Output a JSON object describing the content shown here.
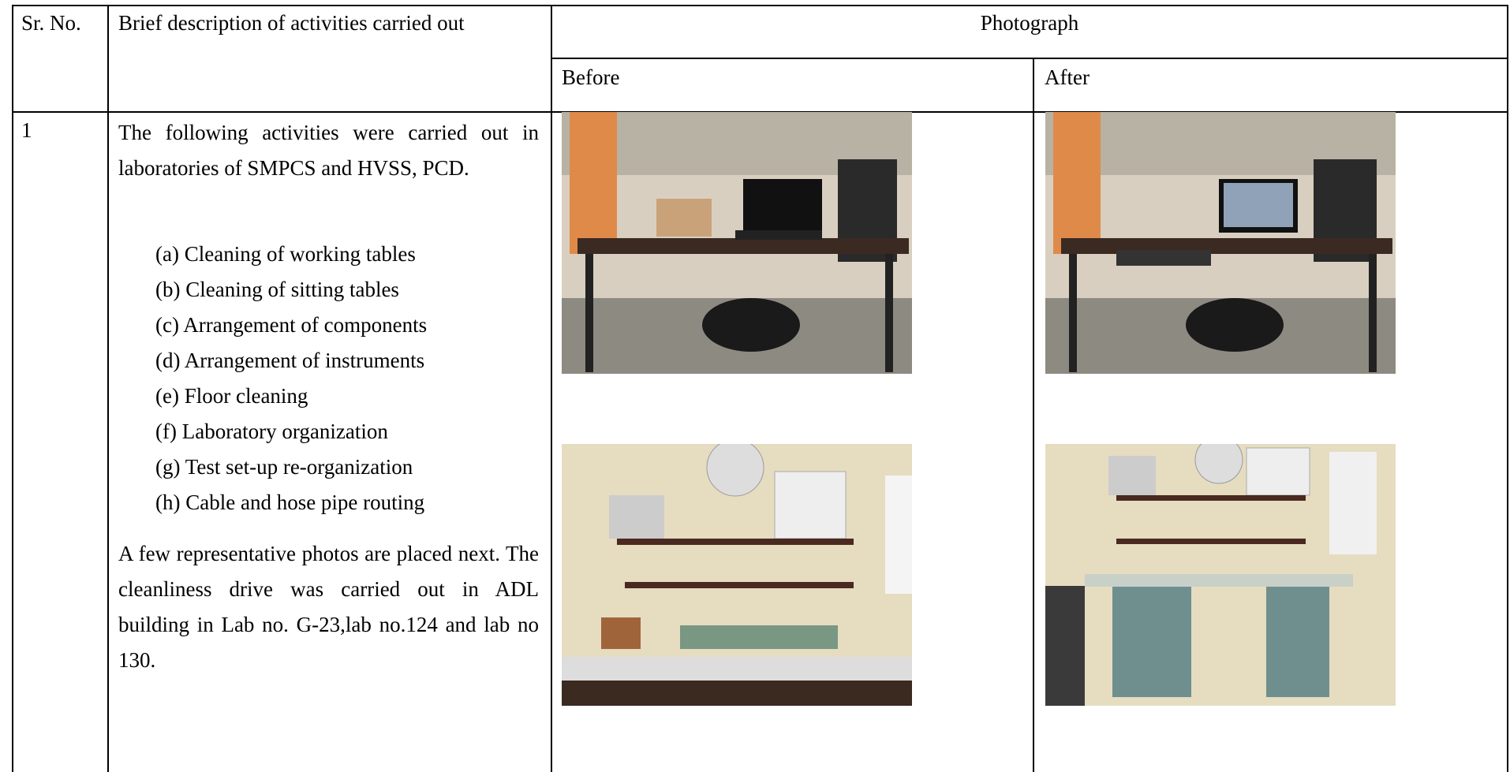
{
  "table": {
    "header": {
      "sr_no": "Sr. No.",
      "description": "Brief description of activities carried out",
      "photograph": "Photograph",
      "before": "Before",
      "after": "After"
    },
    "rows": [
      {
        "sr_no": "1",
        "intro": "The following activities were carried out in laboratories of SMPCS and HVSS, PCD.",
        "items": [
          "(a) Cleaning of working tables",
          "(b) Cleaning of sitting tables",
          "(c) Arrangement of components",
          "(d) Arrangement of instruments",
          "(e) Floor cleaning",
          "(f) Laboratory organization",
          "(g) Test set-up re-organization",
          "(h) Cable and hose pipe routing"
        ],
        "closing": "A few representative photos are placed next. The cleanliness drive was carried out in ADL building in Lab no. G-23,lab no.124 and lab no 130."
      }
    ]
  }
}
